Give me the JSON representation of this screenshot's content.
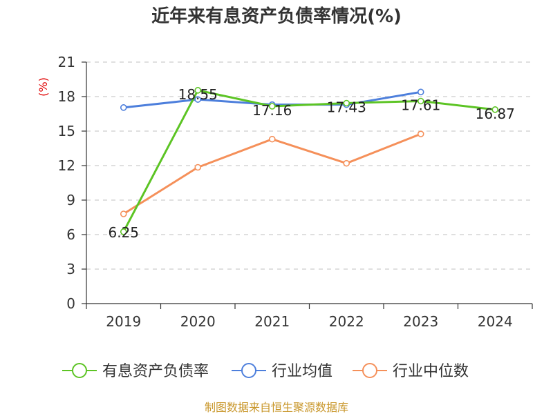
{
  "chart_data": {
    "type": "line",
    "title": "近年来有息资产负债率情况(%)",
    "ylabel": "(%)",
    "xlabel": "",
    "categories": [
      "2019",
      "2020",
      "2021",
      "2022",
      "2023",
      "2024"
    ],
    "ylim": [
      0,
      21
    ],
    "yticks": [
      0,
      3,
      6,
      9,
      12,
      15,
      18,
      21
    ],
    "grid": true,
    "legend_position": "bottom",
    "series": [
      {
        "name": "有息资产负债率",
        "color": "#5cc424",
        "values": [
          6.25,
          18.55,
          17.16,
          17.43,
          17.61,
          16.87
        ],
        "labels": [
          "6.25",
          "18.55",
          "17.16",
          "17.43",
          "17.61",
          "16.87"
        ]
      },
      {
        "name": "行业均值",
        "color": "#4d7fdc",
        "values": [
          17.05,
          17.75,
          17.3,
          17.3,
          18.4,
          null
        ]
      },
      {
        "name": "行业中位数",
        "color": "#f5905a",
        "values": [
          7.8,
          11.85,
          14.3,
          12.2,
          14.75,
          null
        ]
      }
    ]
  },
  "footer": "制图数据来自恒生聚源数据库"
}
